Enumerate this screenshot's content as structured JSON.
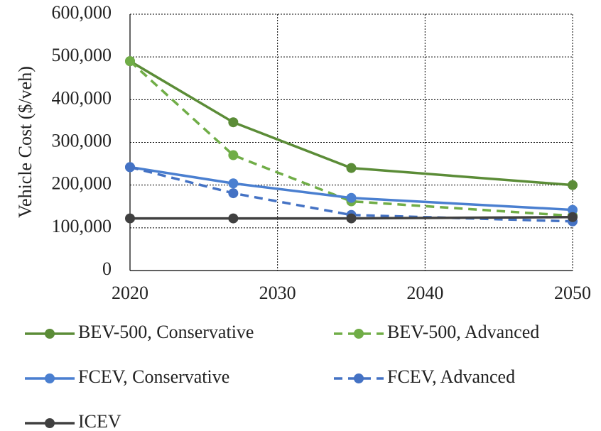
{
  "chart_data": {
    "type": "line",
    "y_label": "Vehicle Cost ($/veh)",
    "x": [
      2020,
      2027,
      2035,
      2050
    ],
    "xlim": [
      2020,
      2050
    ],
    "xticks": [
      2020,
      2030,
      2040,
      2050
    ],
    "ylim": [
      0,
      600000
    ],
    "yticks": [
      0,
      {
        "value": 100000,
        "label": "100,000"
      },
      {
        "value": 200000,
        "label": "200,000"
      },
      {
        "value": 300000,
        "label": "300,000"
      },
      {
        "value": 400000,
        "label": "400,000"
      },
      {
        "value": 500000,
        "label": "500,000"
      },
      {
        "value": 600000,
        "label": "600,000"
      }
    ],
    "grid": true,
    "legend": "bottom",
    "series": [
      {
        "name": "BEV-500, Conservative",
        "color": "#5b8c37",
        "dashed": false,
        "values": [
          490000,
          347000,
          240000,
          200000
        ]
      },
      {
        "name": "BEV-500, Advanced",
        "color": "#70ad47",
        "dashed": true,
        "values": [
          490000,
          270000,
          162000,
          128000
        ]
      },
      {
        "name": "FCEV, Conservative",
        "color": "#4a7fd0",
        "dashed": false,
        "values": [
          242000,
          204000,
          170000,
          142000
        ]
      },
      {
        "name": "FCEV, Advanced",
        "color": "#4472c4",
        "dashed": true,
        "values": [
          242000,
          181000,
          130000,
          115000
        ]
      },
      {
        "name": "ICEV",
        "color": "#404040",
        "dashed": false,
        "values": [
          122000,
          122000,
          122000,
          125000
        ]
      }
    ]
  }
}
